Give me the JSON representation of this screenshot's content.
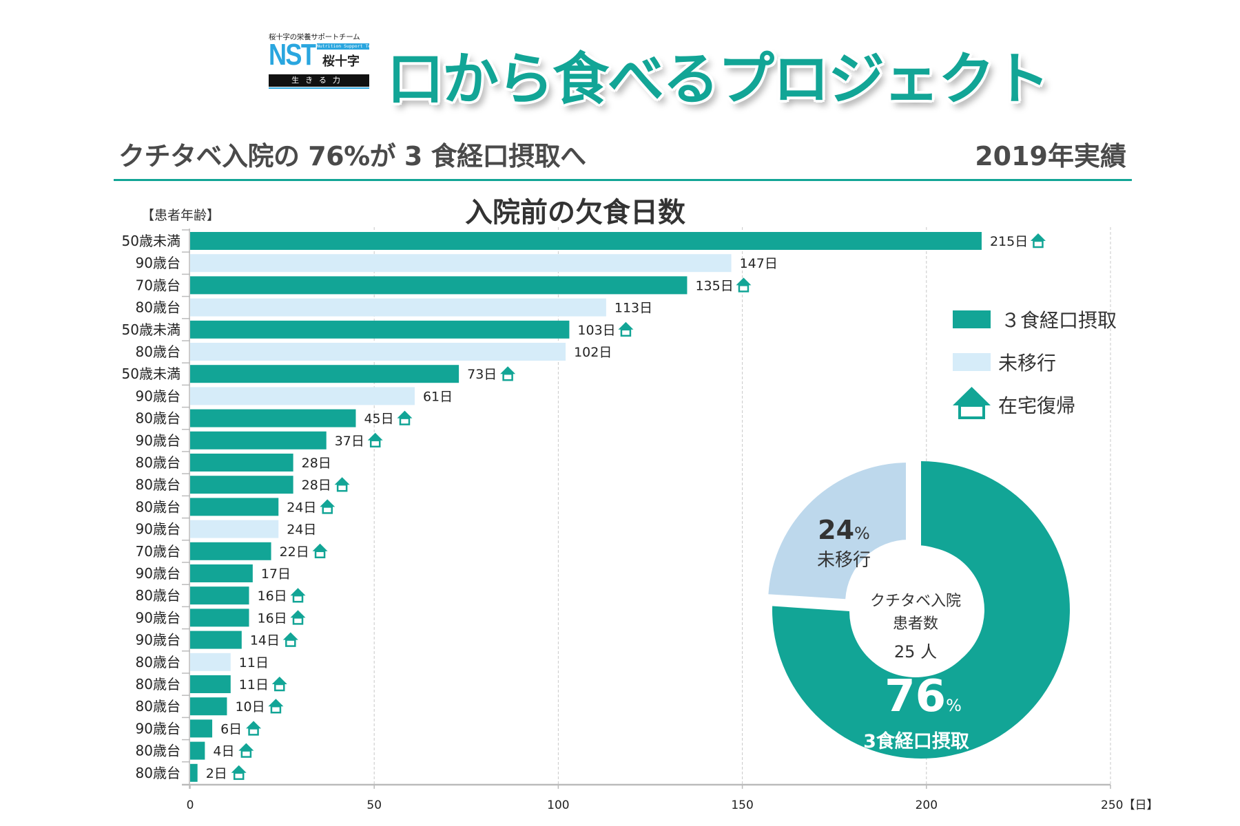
{
  "logo": {
    "tagline": "桜十字の栄養サポートチーム",
    "mark": "NST",
    "mark_sub": "Nutrition Support Team",
    "brand": "桜十字",
    "motto": "生きる力"
  },
  "header": {
    "title": "口から食べるプロジェクト",
    "subtitle": "クチタベ入院の 76%が 3 食経口摂取へ",
    "year_label": "2019年実績"
  },
  "colors": {
    "teal": "#12a596",
    "light_blue": "#d6ecf9",
    "donut_light_blue": "#bdd8ec",
    "logo_blue": "#2aa6df"
  },
  "legend": {
    "items": [
      {
        "label": "３食経口摂取",
        "kind": "teal-swatch"
      },
      {
        "label": "未移行",
        "kind": "light-blue-swatch"
      },
      {
        "label": "在宅復帰",
        "kind": "home-icon"
      }
    ]
  },
  "chart_data": [
    {
      "type": "bar",
      "orientation": "horizontal",
      "title": "入院前の欠食日数",
      "ylabel": "【患者年齢】",
      "xlabel": "【日】",
      "xlim": [
        0,
        250
      ],
      "xticks": [
        "0",
        "50",
        "100",
        "150",
        "200",
        "250"
      ],
      "grid": "vertical dashed",
      "value_suffix": "日",
      "categories": [
        "50歳未満",
        "90歳台",
        "70歳台",
        "80歳台",
        "50歳未満",
        "80歳台",
        "50歳未満",
        "90歳台",
        "80歳台",
        "90歳台",
        "80歳台",
        "80歳台",
        "80歳台",
        "90歳台",
        "70歳台",
        "90歳台",
        "80歳台",
        "90歳台",
        "90歳台",
        "80歳台",
        "80歳台",
        "80歳台",
        "90歳台",
        "80歳台",
        "80歳台"
      ],
      "values": [
        215,
        147,
        135,
        113,
        103,
        102,
        73,
        61,
        45,
        37,
        28,
        28,
        24,
        24,
        22,
        17,
        16,
        16,
        14,
        11,
        11,
        10,
        6,
        4,
        2
      ],
      "status": [
        "3食経口摂取",
        "未移行",
        "3食経口摂取",
        "未移行",
        "3食経口摂取",
        "未移行",
        "3食経口摂取",
        "未移行",
        "3食経口摂取",
        "3食経口摂取",
        "3食経口摂取",
        "3食経口摂取",
        "3食経口摂取",
        "未移行",
        "3食経口摂取",
        "3食経口摂取",
        "3食経口摂取",
        "3食経口摂取",
        "3食経口摂取",
        "未移行",
        "3食経口摂取",
        "3食経口摂取",
        "3食経口摂取",
        "3食経口摂取",
        "3食経口摂取"
      ],
      "home_return": [
        true,
        false,
        true,
        false,
        true,
        false,
        true,
        false,
        true,
        true,
        false,
        true,
        true,
        false,
        true,
        false,
        true,
        true,
        true,
        false,
        true,
        true,
        true,
        true,
        true
      ]
    },
    {
      "type": "pie",
      "style": "donut",
      "categories": [
        "3食経口摂取",
        "未移行"
      ],
      "values": [
        76,
        24
      ],
      "value_labels": [
        "76",
        "24"
      ],
      "percent_sign": "%",
      "center_label_lines": [
        "クチタベ入院",
        "患者数",
        "25 人"
      ],
      "total_patients": 25
    }
  ]
}
